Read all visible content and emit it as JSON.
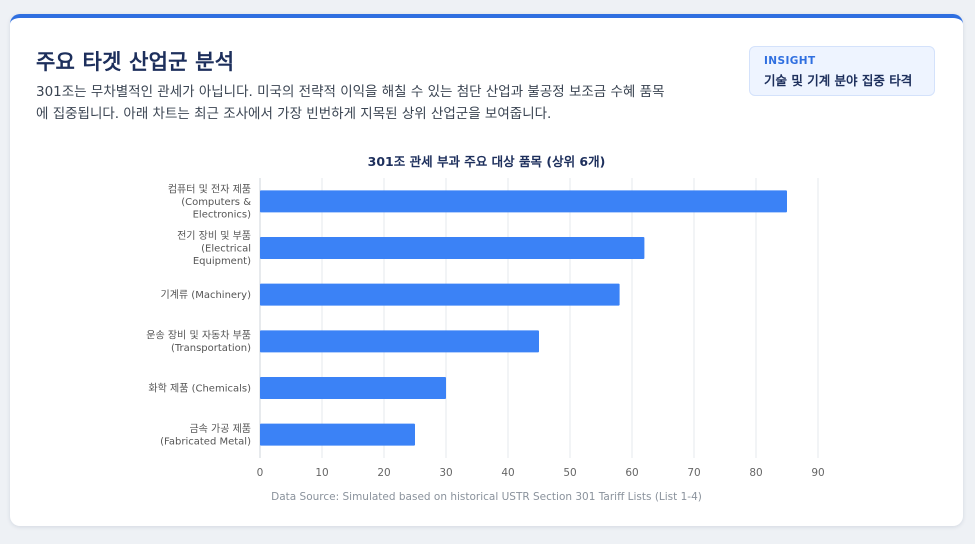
{
  "header": {
    "title": "주요 타겟 산업군 분석",
    "description": "301조는 무차별적인 관세가 아닙니다. 미국의 전략적 이익을 해칠 수 있는 첨단 산업과 불공정 보조금 수혜 품목에 집중됩니다. 아래 차트는 최근 조사에서 가장 빈번하게 지목된 상위 산업군을 보여줍니다."
  },
  "insight": {
    "label": "INSIGHT",
    "text": "기술 및 기계 분야 집중 타격"
  },
  "colors": {
    "bar": "#3b82f6",
    "accent": "#2f6fe0",
    "title": "#1d2f5c"
  },
  "chart_data": {
    "type": "bar",
    "orientation": "horizontal",
    "title": "301조 관세 부과 주요 대상 품목 (상위 6개)",
    "categories": [
      [
        "컴퓨터 및 전자 제품",
        "(Computers &",
        "Electronics)"
      ],
      [
        "전기 장비 및 부품",
        "(Electrical",
        "Equipment)"
      ],
      [
        "기계류 (Machinery)"
      ],
      [
        "운송 장비 및 자동차 부품",
        "(Transportation)"
      ],
      [
        "화학 제품 (Chemicals)"
      ],
      [
        "금속 가공 제품",
        "(Fabricated Metal)"
      ]
    ],
    "values": [
      85,
      62,
      58,
      45,
      30,
      25
    ],
    "xlim": [
      0,
      90
    ],
    "xticks": [
      0,
      10,
      20,
      30,
      40,
      50,
      60,
      70,
      80,
      90
    ],
    "grid": true,
    "legend": "none"
  },
  "source": "Data Source: Simulated based on historical USTR Section 301 Tariff Lists (List 1-4)"
}
